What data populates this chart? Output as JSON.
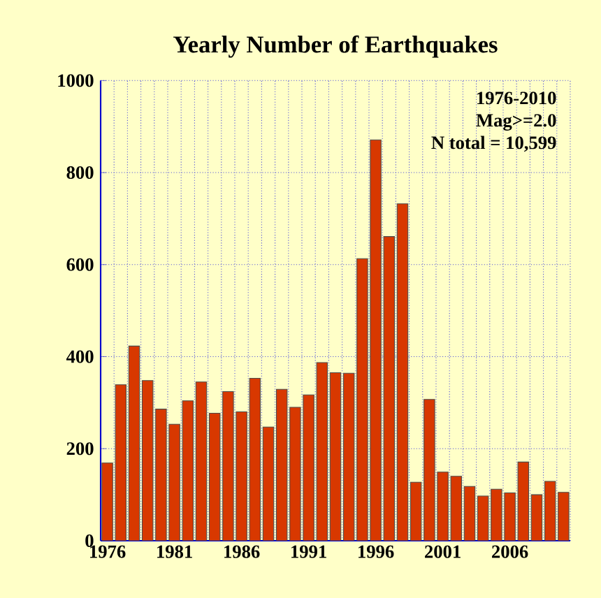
{
  "chart_data": {
    "type": "bar",
    "title": "Yearly Number of Earthquakes",
    "x": [
      1976,
      1977,
      1978,
      1979,
      1980,
      1981,
      1982,
      1983,
      1984,
      1985,
      1986,
      1987,
      1988,
      1989,
      1990,
      1991,
      1992,
      1993,
      1994,
      1995,
      1996,
      1997,
      1998,
      1999,
      2000,
      2001,
      2002,
      2003,
      2004,
      2005,
      2006,
      2007,
      2008,
      2009,
      2010
    ],
    "values": [
      169,
      339,
      423,
      348,
      286,
      253,
      304,
      345,
      277,
      324,
      280,
      353,
      247,
      329,
      290,
      317,
      387,
      365,
      364,
      613,
      871,
      661,
      732,
      127,
      307,
      149,
      140,
      118,
      97,
      112,
      104,
      171,
      100,
      129,
      105
    ],
    "color": "#d83800",
    "xlim": [
      1975.5,
      2010.5
    ],
    "xticks": [
      1976,
      1981,
      1986,
      1991,
      1996,
      2001,
      2006
    ],
    "ylim": [
      0,
      1000
    ],
    "yticks": [
      0,
      200,
      400,
      600,
      800,
      1000
    ],
    "grid": true,
    "annotations": [
      "1976-2010",
      "Mag>=2.0",
      "N total = 10,599"
    ]
  }
}
